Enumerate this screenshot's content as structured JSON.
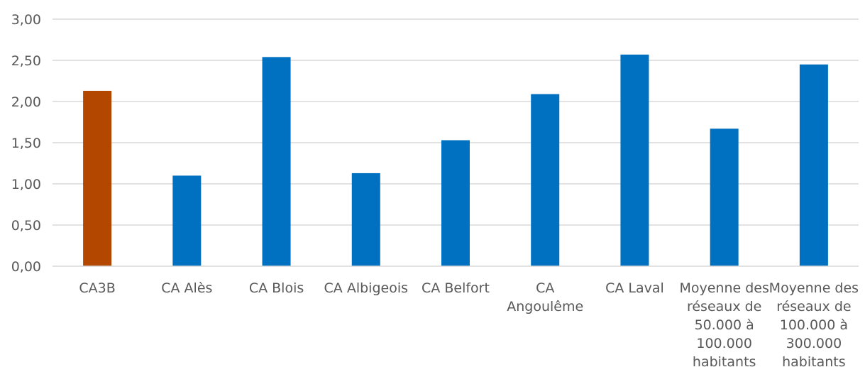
{
  "chart_data": {
    "type": "bar",
    "categories": [
      [
        "CA3B"
      ],
      [
        "CA Alès"
      ],
      [
        "CA Blois"
      ],
      [
        "CA Albigeois"
      ],
      [
        "CA Belfort"
      ],
      [
        "CA",
        "Angoulême"
      ],
      [
        "CA Laval"
      ],
      [
        "Moyenne des",
        "réseaux de",
        "50.000 à",
        "100.000",
        "habitants"
      ],
      [
        "Moyenne des",
        "réseaux de",
        "100.000 à",
        "300.000",
        "habitants"
      ]
    ],
    "values": [
      2.13,
      1.1,
      2.54,
      1.13,
      1.53,
      2.09,
      2.57,
      1.67,
      2.45
    ],
    "bar_colors": [
      "#b34700",
      "#0070c0",
      "#0070c0",
      "#0070c0",
      "#0070c0",
      "#0070c0",
      "#0070c0",
      "#0070c0",
      "#0070c0"
    ],
    "ylim": [
      0,
      3
    ],
    "yticks": [
      "0,00",
      "0,50",
      "1,00",
      "1,50",
      "2,00",
      "2,50",
      "3,00"
    ],
    "ytick_values": [
      0,
      0.5,
      1,
      1.5,
      2,
      2.5,
      3
    ],
    "grid": true,
    "gridline_color": "#d9d9d9",
    "axis_color": "#d9d9d9",
    "title": "",
    "xlabel": "",
    "ylabel": ""
  }
}
